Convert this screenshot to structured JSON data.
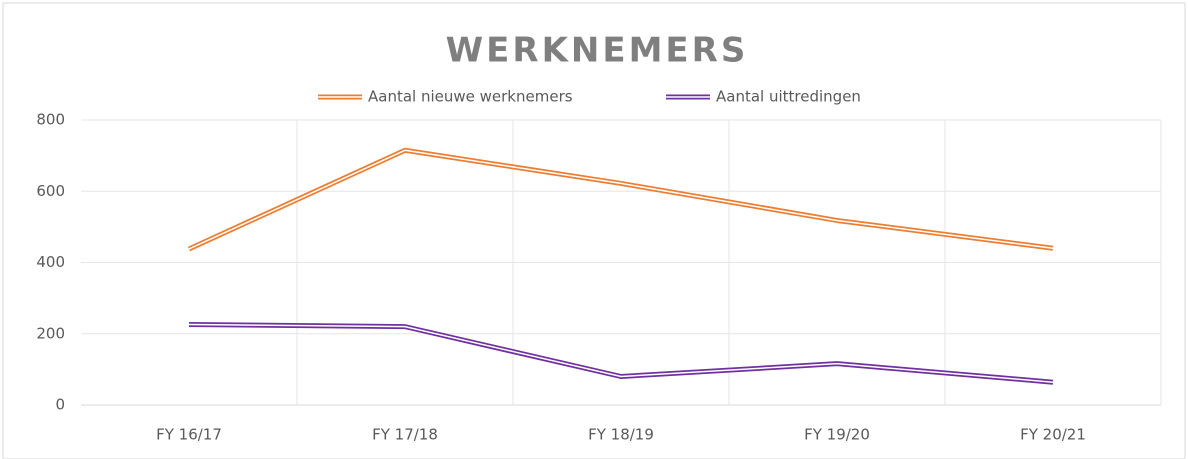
{
  "chart_data": {
    "type": "line",
    "title": "WERKNEMERS",
    "categories": [
      "FY 16/17",
      "FY 17/18",
      "FY 18/19",
      "FY 19/20",
      "FY 20/21"
    ],
    "series": [
      {
        "name": "Aantal nieuwe werknemers",
        "color": "#ed7d31",
        "values": [
          438,
          715,
          622,
          518,
          440
        ]
      },
      {
        "name": "Aantal uittredingen",
        "color": "#7030a0",
        "values": [
          226,
          220,
          80,
          116,
          64
        ]
      }
    ],
    "ylim": [
      0,
      800
    ],
    "yticks": [
      0,
      200,
      400,
      600,
      800
    ],
    "grid": true,
    "legend": "top"
  }
}
